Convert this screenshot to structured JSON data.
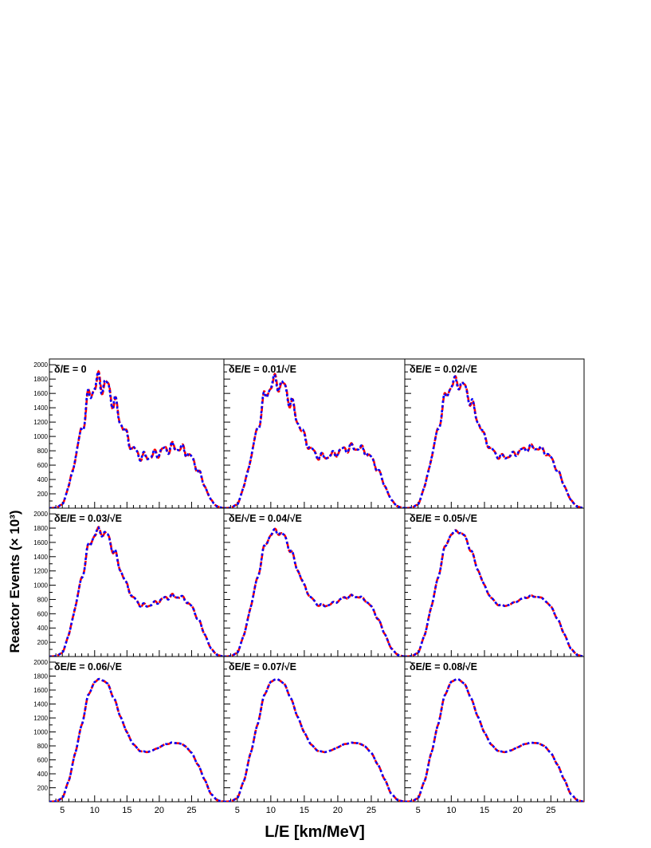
{
  "figure": {
    "xlabel": "L/E [km/MeV]",
    "ylabel": "Reactor Events (× 10³)"
  },
  "colors": {
    "series_a": "#ff0000",
    "series_b": "#0000ff"
  },
  "chart_data": {
    "type": "line",
    "layout": "3x3 grid",
    "x_range": [
      3,
      30
    ],
    "y_range": [
      0,
      2080
    ],
    "x_ticks": [
      5,
      10,
      15,
      20,
      25
    ],
    "y_ticks": [
      200,
      400,
      600,
      800,
      1000,
      1200,
      1400,
      1600,
      1800,
      2000
    ],
    "series_styles": [
      {
        "color": "#ff0000",
        "style": "dashed"
      },
      {
        "color": "#0000ff",
        "style": "dotted"
      }
    ],
    "envelope": {
      "x": [
        3,
        4,
        5,
        6,
        7,
        8,
        9,
        10,
        11,
        12,
        13,
        14,
        15,
        16,
        17,
        18,
        19,
        20,
        21,
        22,
        23,
        24,
        25,
        26,
        27,
        28,
        29,
        30
      ],
      "y": [
        0,
        5,
        50,
        300,
        700,
        1100,
        1520,
        1720,
        1760,
        1690,
        1480,
        1220,
        990,
        820,
        730,
        710,
        735,
        780,
        825,
        845,
        840,
        800,
        700,
        530,
        320,
        110,
        20,
        0
      ]
    },
    "panels": [
      {
        "label": "δ/E = 0",
        "wiggle_amplitude": 160
      },
      {
        "label": "δE/E = 0.01/√E",
        "wiggle_amplitude": 125
      },
      {
        "label": "δE/E = 0.02/√E",
        "wiggle_amplitude": 95
      },
      {
        "label": "δE/E = 0.03/√E",
        "wiggle_amplitude": 70
      },
      {
        "label": "δE/√E = 0.04/√E",
        "wiggle_amplitude": 45
      },
      {
        "label": "δE/E = 0.05/√E",
        "wiggle_amplitude": 25
      },
      {
        "label": "δE/E = 0.06/√E",
        "wiggle_amplitude": 12
      },
      {
        "label": "δE/E = 0.07/√E",
        "wiggle_amplitude": 5
      },
      {
        "label": "δE/E = 0.08/√E",
        "wiggle_amplitude": 2
      }
    ]
  }
}
